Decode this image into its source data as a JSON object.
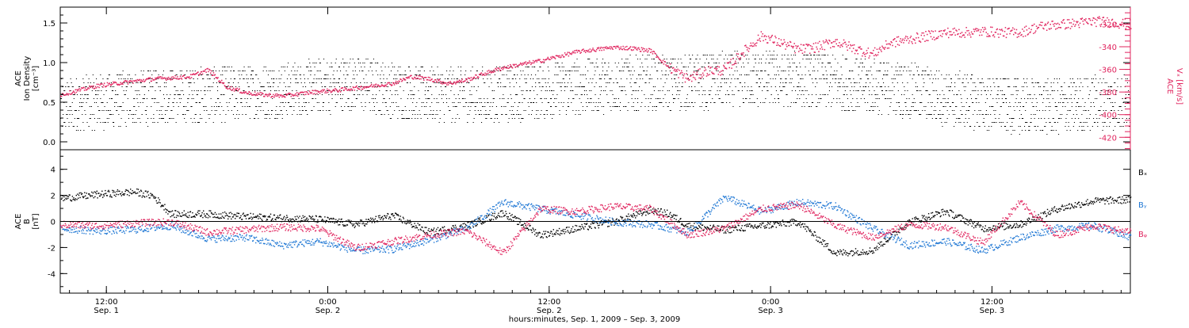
{
  "chart_data": [
    {
      "type": "scatter",
      "panel": "top",
      "left_axis": {
        "label_lines": [
          "ACE",
          "Ion Density",
          "[cm⁻³]"
        ],
        "ylim": [
          -0.1,
          1.7
        ],
        "ticks": [
          0.0,
          0.5,
          1.0,
          1.5
        ],
        "tick_labels": [
          "0.0",
          "0.5",
          "1.0",
          "1.5"
        ],
        "color": "#000000"
      },
      "right_axis": {
        "label_lines": [
          "ACE",
          "Vₓ [km/s]"
        ],
        "ylim": [
          -431,
          -305
        ],
        "ticks": [
          -420,
          -400,
          -380,
          -360,
          -340,
          -320
        ],
        "tick_labels": [
          "-420",
          "-400",
          "-380",
          "-360",
          "-340",
          "-320"
        ],
        "color": "#e0245e"
      },
      "series": [
        {
          "color": "#000000",
          "axis": "left",
          "x_hours": [
            0,
            2,
            4,
            6,
            8,
            10,
            12,
            14,
            16,
            18,
            20,
            22,
            24,
            26,
            28,
            30,
            32,
            34,
            36,
            38,
            40,
            42,
            44,
            46,
            48,
            50,
            52,
            54,
            56,
            58
          ],
          "y": [
            0.45,
            0.5,
            0.55,
            0.6,
            0.6,
            0.62,
            0.65,
            0.7,
            0.75,
            0.65,
            0.6,
            0.6,
            0.6,
            0.65,
            0.7,
            0.72,
            0.75,
            0.75,
            0.78,
            0.8,
            0.8,
            0.75,
            0.7,
            0.65,
            0.55,
            0.5,
            0.45,
            0.45,
            0.5,
            0.5
          ]
        },
        {
          "color": "#e0245e",
          "axis": "right",
          "x_hours": [
            0,
            1,
            2,
            3,
            4,
            5,
            6,
            7,
            8,
            9,
            10,
            11,
            12,
            13,
            14,
            15,
            16,
            17,
            18,
            19,
            20,
            21,
            22,
            23,
            24,
            25,
            26,
            27,
            28,
            29,
            30,
            31,
            32,
            33,
            34,
            35,
            36,
            37,
            38,
            39,
            40,
            41,
            42,
            43,
            44,
            45,
            46,
            47,
            48,
            49,
            50,
            51,
            52,
            53,
            54,
            55,
            56,
            57,
            58
          ],
          "y": [
            -382,
            -378,
            -374,
            -372,
            -370,
            -368,
            -367,
            -366,
            -360,
            -375,
            -380,
            -382,
            -383,
            -381,
            -379,
            -378,
            -376,
            -374,
            -372,
            -366,
            -368,
            -372,
            -369,
            -363,
            -358,
            -355,
            -352,
            -348,
            -344,
            -342,
            -340,
            -341,
            -343,
            -358,
            -368,
            -361,
            -360,
            -344,
            -330,
            -336,
            -342,
            -340,
            -335,
            -341,
            -346,
            -336,
            -333,
            -330,
            -327,
            -327,
            -326,
            -327,
            -327,
            -322,
            -320,
            -319,
            -317,
            -318,
            -320
          ]
        }
      ]
    },
    {
      "type": "scatter",
      "panel": "bottom",
      "axis": {
        "label_lines": [
          "ACE",
          "B",
          "[nT]"
        ],
        "ylim": [
          -5.5,
          5.5
        ],
        "ticks": [
          -4,
          -2,
          0,
          2,
          4
        ],
        "tick_labels": [
          "-4",
          "-2",
          "0",
          "2",
          "4"
        ]
      },
      "zero_line": true,
      "series": [
        {
          "name": "Bₓ",
          "color": "#000000",
          "x_hours": [
            0,
            2,
            4,
            5,
            6,
            8,
            10,
            12,
            14,
            16,
            18,
            20,
            22,
            24,
            26,
            28,
            30,
            32,
            33,
            34,
            36,
            38,
            40,
            42,
            44,
            46,
            48,
            50,
            52,
            54,
            56,
            58
          ],
          "y": [
            1.8,
            2.1,
            2.3,
            2.0,
            0.6,
            0.6,
            0.4,
            0.3,
            0.2,
            -0.2,
            0.5,
            -0.8,
            -0.3,
            0.7,
            -1.0,
            -0.5,
            0.0,
            0.9,
            0.6,
            -0.3,
            -0.6,
            -0.3,
            0.0,
            -2.4,
            -2.2,
            0.0,
            0.8,
            -0.5,
            -0.2,
            1.0,
            1.6,
            1.7
          ]
        },
        {
          "name": "Bᵧ",
          "color": "#1f77d4",
          "x_hours": [
            0,
            2,
            4,
            6,
            8,
            10,
            12,
            14,
            16,
            18,
            20,
            22,
            24,
            26,
            28,
            30,
            32,
            34,
            36,
            38,
            40,
            42,
            44,
            46,
            48,
            50,
            52,
            54,
            56,
            58
          ],
          "y": [
            -0.5,
            -0.7,
            -0.6,
            -0.3,
            -1.3,
            -1.2,
            -1.8,
            -1.5,
            -2.2,
            -2.1,
            -1.4,
            -0.5,
            1.5,
            1.0,
            0.5,
            0.0,
            -0.2,
            -0.8,
            1.9,
            0.8,
            1.5,
            1.2,
            -0.5,
            -1.8,
            -1.5,
            -2.2,
            -1.2,
            -0.5,
            -0.3,
            -1.2
          ]
        },
        {
          "name": "Bᵩ",
          "color": "#e0245e",
          "x_hours": [
            0,
            2,
            4,
            6,
            8,
            10,
            12,
            14,
            16,
            18,
            20,
            22,
            24,
            26,
            28,
            30,
            32,
            34,
            36,
            38,
            40,
            42,
            44,
            46,
            48,
            50,
            52,
            54,
            56,
            58
          ],
          "y": [
            -0.2,
            -0.3,
            -0.1,
            0.0,
            -0.8,
            -0.6,
            -0.4,
            -0.5,
            -2.0,
            -1.5,
            -1.0,
            -0.7,
            -2.4,
            1.0,
            0.8,
            1.2,
            1.0,
            -1.0,
            -0.5,
            1.0,
            1.3,
            -0.3,
            -1.2,
            -0.2,
            -0.4,
            -1.6,
            1.5,
            -1.0,
            -0.3,
            -0.8
          ]
        }
      ]
    }
  ],
  "x_axis": {
    "title": "hours:minutes, Sep.  1, 2009 – Sep.  3, 2009",
    "range_hours": [
      9.5,
      67.5
    ],
    "ticks": [
      {
        "hour": 12,
        "time": "12:00",
        "date": "Sep. 1"
      },
      {
        "hour": 24,
        "time": "0:00",
        "date": "Sep. 2"
      },
      {
        "hour": 36,
        "time": "12:00",
        "date": "Sep. 2"
      },
      {
        "hour": 48,
        "time": "0:00",
        "date": "Sep. 3"
      },
      {
        "hour": 60,
        "time": "12:00",
        "date": "Sep. 3"
      }
    ],
    "minor_every_hours": 1
  }
}
